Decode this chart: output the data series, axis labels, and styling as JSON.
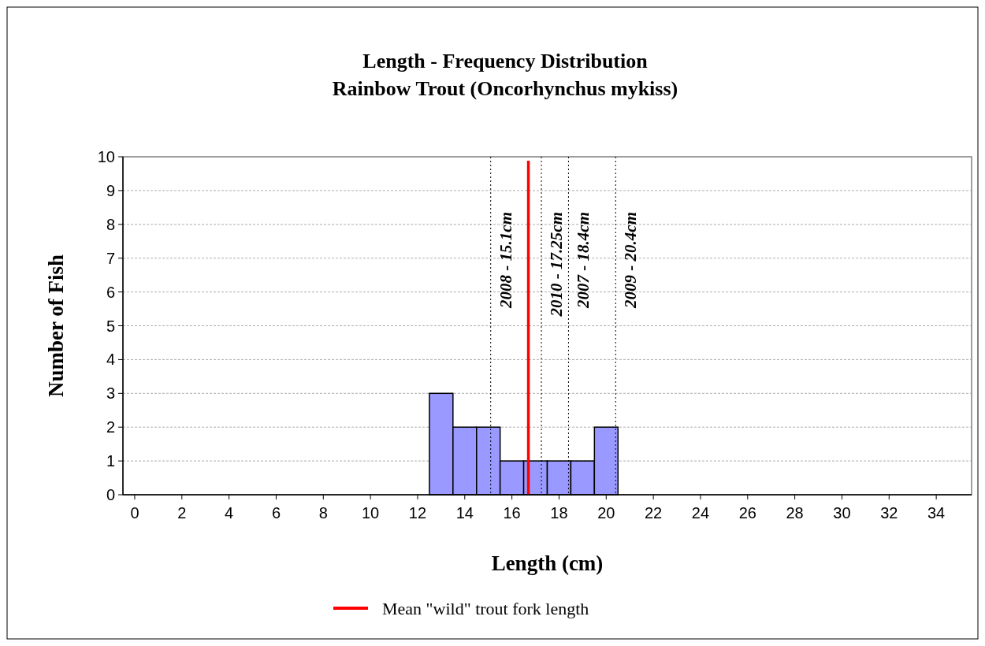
{
  "chart_data": {
    "type": "histogram",
    "title": "Length - Frequency Distribution",
    "subtitle": "Rainbow Trout (Oncorhynchus mykiss)",
    "xlabel": "Length (cm)",
    "ylabel": "Number of Fish",
    "bins": [
      12.5,
      13.5,
      14.5,
      15.5,
      16.5,
      17.5,
      18.5,
      19.5,
      20.5
    ],
    "values": [
      3,
      2,
      2,
      1,
      1,
      1,
      1,
      2
    ],
    "color": "#9999ff",
    "xlim": [
      -0.5,
      35.5
    ],
    "xticks": [
      0,
      2,
      4,
      6,
      8,
      10,
      12,
      14,
      16,
      18,
      20,
      22,
      24,
      26,
      28,
      30,
      32,
      34
    ],
    "ylim": [
      0,
      10
    ],
    "yticks": [
      0,
      1,
      2,
      3,
      4,
      5,
      6,
      7,
      8,
      9,
      10
    ],
    "grid": "y",
    "ref_lines": [
      {
        "axis": "x",
        "value": 15.1,
        "label": "2008 - 15.1cm",
        "color": "#000000",
        "line_style": "dotted"
      },
      {
        "axis": "x",
        "value": 17.25,
        "label": "2010 - 17.25cm",
        "color": "#000000",
        "line_style": "dotted"
      },
      {
        "axis": "x",
        "value": 18.4,
        "label": "2007 - 18.4cm",
        "color": "#000000",
        "line_style": "dotted"
      },
      {
        "axis": "x",
        "value": 20.4,
        "label": "2009 - 20.4cm",
        "color": "#000000",
        "line_style": "dotted"
      },
      {
        "axis": "x",
        "value": 16.7,
        "label": "Mean \"wild\" trout fork length",
        "color": "#ff0000",
        "line_style": "solid"
      }
    ],
    "legend": "bottom"
  }
}
